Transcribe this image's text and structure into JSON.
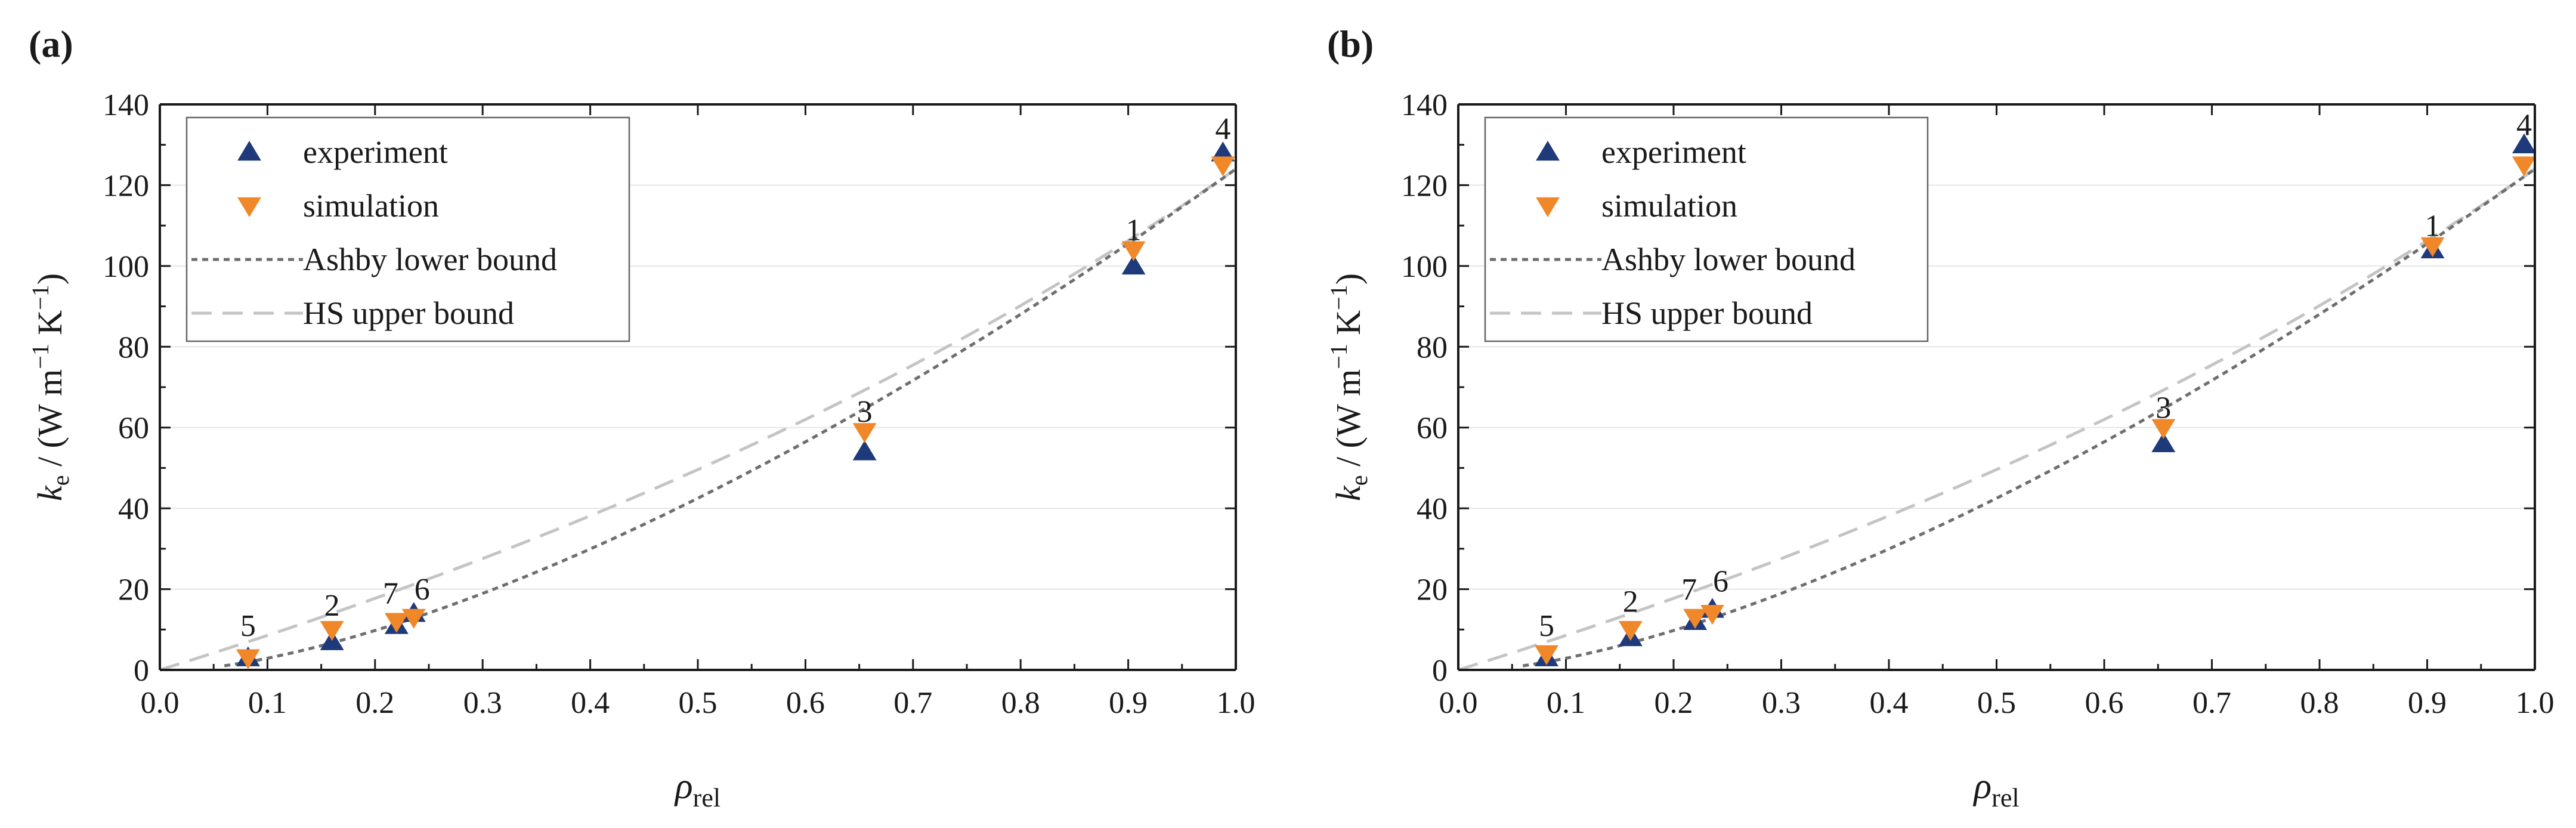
{
  "colors": {
    "experiment": "#1f3a7a",
    "simulation": "#f0882a",
    "ashby": "#6e6e6e",
    "hs": "#c4c4c4",
    "axis": "#1a1a1a",
    "grid": "#e6e6e6"
  },
  "chart_data": [
    {
      "type": "scatter",
      "panel_label": "(a)",
      "xlabel": "ρ",
      "xlabel_sub": "rel",
      "ylabel_parts": [
        "k",
        "e",
        " / (W m",
        "−1",
        " K",
        "−1",
        ")"
      ],
      "xlim": [
        0.0,
        1.0
      ],
      "ylim": [
        0,
        140
      ],
      "xticks": [
        "0.0",
        "0.1",
        "0.2",
        "0.3",
        "0.4",
        "0.5",
        "0.6",
        "0.7",
        "0.8",
        "0.9",
        "1.0"
      ],
      "yticks": [
        "0",
        "20",
        "40",
        "60",
        "80",
        "100",
        "120",
        "140"
      ],
      "grid": true,
      "legend_position": "top-left",
      "legend": [
        "experiment",
        "simulation",
        "Ashby lower bound",
        "HS upper bound"
      ],
      "point_labels": [
        {
          "text": "5",
          "x": 0.082,
          "y": 4
        },
        {
          "text": "2",
          "x": 0.16,
          "y": 9
        },
        {
          "text": "7",
          "x": 0.22,
          "y": 12
        },
        {
          "text": "6",
          "x": 0.236,
          "y": 13
        },
        {
          "text": "3",
          "x": 0.655,
          "y": 57
        },
        {
          "text": "1",
          "x": 0.905,
          "y": 102
        },
        {
          "text": "4",
          "x": 0.988,
          "y": 127
        }
      ],
      "series": [
        {
          "name": "experiment",
          "marker": "triangle-up",
          "x": [
            0.082,
            0.16,
            0.22,
            0.236,
            0.655,
            0.905,
            0.988
          ],
          "y": [
            3,
            7,
            11,
            14,
            54,
            100,
            128
          ]
        },
        {
          "name": "simulation",
          "marker": "triangle-down",
          "x": [
            0.082,
            0.16,
            0.22,
            0.236,
            0.655,
            0.905,
            0.988
          ],
          "y": [
            3,
            10,
            12,
            13,
            59,
            104,
            125
          ]
        },
        {
          "name": "Ashby lower bound",
          "line": "dotted",
          "x_range": [
            0.06,
            1.0
          ]
        },
        {
          "name": "HS upper bound",
          "line": "dashed",
          "x_range": [
            0.0,
            1.0
          ]
        }
      ]
    },
    {
      "type": "scatter",
      "panel_label": "(b)",
      "xlabel": "ρ",
      "xlabel_sub": "rel",
      "ylabel_parts": [
        "k",
        "e",
        " / (W m",
        "−1",
        " K",
        "−1",
        ")"
      ],
      "xlim": [
        0.0,
        1.0
      ],
      "ylim": [
        0,
        140
      ],
      "xticks": [
        "0.0",
        "0.1",
        "0.2",
        "0.3",
        "0.4",
        "0.5",
        "0.6",
        "0.7",
        "0.8",
        "0.9",
        "1.0"
      ],
      "yticks": [
        "0",
        "20",
        "40",
        "60",
        "80",
        "100",
        "120",
        "140"
      ],
      "grid": true,
      "legend_position": "top-left",
      "legend": [
        "experiment",
        "simulation",
        "Ashby lower bound",
        "HS upper bound"
      ],
      "point_labels": [
        {
          "text": "5",
          "x": 0.082,
          "y": 4
        },
        {
          "text": "2",
          "x": 0.16,
          "y": 10
        },
        {
          "text": "7",
          "x": 0.22,
          "y": 13
        },
        {
          "text": "6",
          "x": 0.236,
          "y": 15
        },
        {
          "text": "3",
          "x": 0.655,
          "y": 58
        },
        {
          "text": "1",
          "x": 0.905,
          "y": 103
        },
        {
          "text": "4",
          "x": 0.99,
          "y": 128
        }
      ],
      "series": [
        {
          "name": "experiment",
          "marker": "triangle-up",
          "x": [
            0.082,
            0.16,
            0.22,
            0.236,
            0.655,
            0.905,
            0.99
          ],
          "y": [
            3,
            8,
            12,
            15,
            56,
            104,
            130
          ]
        },
        {
          "name": "simulation",
          "marker": "triangle-down",
          "x": [
            0.082,
            0.16,
            0.22,
            0.236,
            0.655,
            0.905,
            0.99
          ],
          "y": [
            4,
            10,
            13,
            14,
            60,
            105,
            125
          ]
        },
        {
          "name": "Ashby lower bound",
          "line": "dotted",
          "x_range": [
            0.06,
            1.0
          ]
        },
        {
          "name": "HS upper bound",
          "line": "dashed",
          "x_range": [
            0.0,
            1.0
          ]
        }
      ]
    }
  ]
}
